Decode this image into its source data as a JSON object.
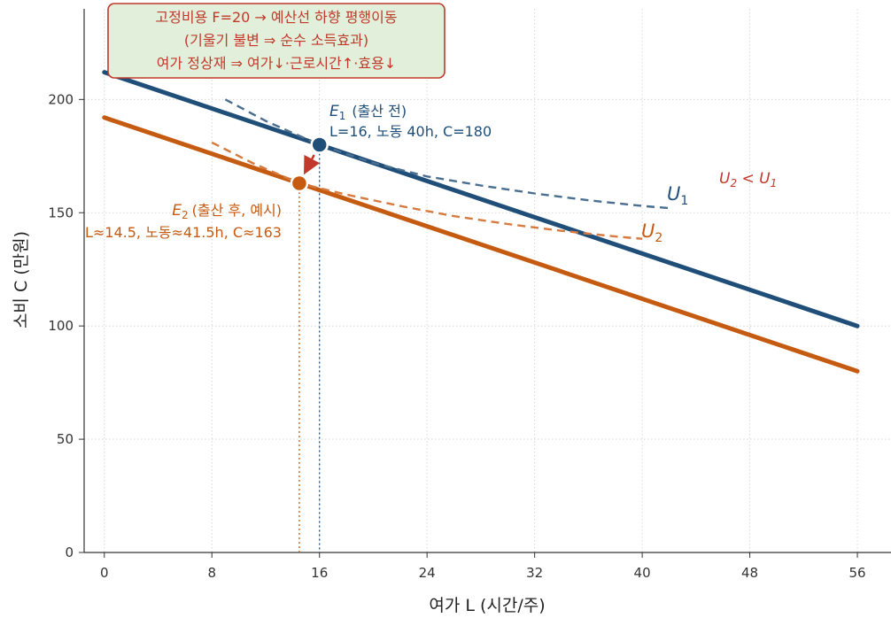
{
  "chart_data": {
    "type": "line",
    "title": "",
    "xlabel": "여가  L  (시간/주)",
    "ylabel": "소비  C  (만원)",
    "xlim": [
      -1.5,
      58.5
    ],
    "ylim": [
      0,
      240
    ],
    "xticks": [
      0,
      8,
      16,
      24,
      32,
      40,
      48,
      56
    ],
    "yticks": [
      0,
      50,
      100,
      150,
      200
    ],
    "grid": true,
    "colors": {
      "before": "#1f4e79",
      "after": "#c55a11",
      "arrow": "#c0392b",
      "box_fill": "#e2efda",
      "box_edge": "#c0392b"
    },
    "series": [
      {
        "key": "budget_before",
        "style": "solid",
        "color": "#1f4e79",
        "x": [
          0,
          56
        ],
        "y": [
          212,
          100
        ]
      },
      {
        "key": "budget_after",
        "style": "solid",
        "color": "#c55a11",
        "x": [
          0,
          56
        ],
        "y": [
          192,
          80
        ]
      },
      {
        "key": "u1",
        "name": "U1",
        "style": "dashed",
        "color": "#4a6e8f",
        "x": [
          9,
          12,
          16,
          20,
          24,
          28,
          32,
          36,
          40,
          42
        ],
        "y": [
          200,
          190.5,
          180,
          172,
          166,
          162,
          158.5,
          155.5,
          153,
          152
        ]
      },
      {
        "key": "u2",
        "name": "U2",
        "style": "dashed",
        "color": "#d67a3f",
        "x": [
          8,
          11,
          14.5,
          18,
          22,
          26,
          30,
          34,
          38,
          40
        ],
        "y": [
          181,
          172,
          163,
          158,
          153,
          148.5,
          145,
          142,
          139.5,
          138.5
        ]
      }
    ],
    "points": [
      {
        "key": "e1",
        "x": 16,
        "y": 180,
        "color": "#1f4e79"
      },
      {
        "key": "e2",
        "x": 14.5,
        "y": 163,
        "color": "#c55a11"
      }
    ],
    "annotations": {
      "box_lines": [
        "고정비용 F=20 → 예산선 하향 평행이동",
        "(기울기 불변 ⇒ 순수 소득효과)",
        "여가 정상재 ⇒ 여가↓·근로시간↑·효용↓"
      ],
      "e1_main": "E",
      "e1_sub": "1",
      "e1_paren": "(출산 전)",
      "e1_detail": "L=16, 노동 40h, C=180",
      "e2_main": "E",
      "e2_sub": "2",
      "e2_paren": "(출산 후, 예시)",
      "e2_detail": "L≈14.5, 노동≈41.5h, C≈163",
      "u1_main": "U",
      "u1_sub": "1",
      "u2_main": "U",
      "u2_sub": "2",
      "compare_a": "U",
      "compare_a_sub": "2",
      "compare_op": " < ",
      "compare_b": "U",
      "compare_b_sub": "1"
    }
  }
}
